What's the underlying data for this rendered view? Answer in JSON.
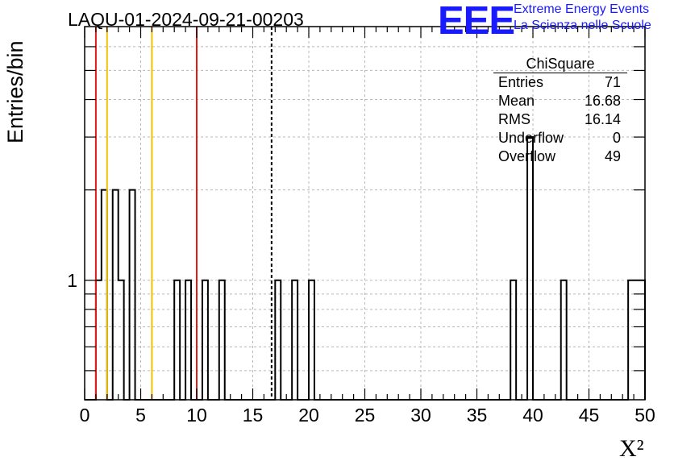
{
  "header": {
    "run_title": "LAQU-01-2024-09-21-00203",
    "y_axis_label": "Entries/bin",
    "x_axis_label": "X²"
  },
  "logo": {
    "mark": "EEE",
    "line1": "Extreme Energy Events",
    "line2": "La Scienza nelle Scuole",
    "color": "#1a1aff"
  },
  "stats_box": {
    "title": "ChiSquare",
    "rows": [
      {
        "label": "Entries",
        "value": "71"
      },
      {
        "label": "Mean",
        "value": "16.68"
      },
      {
        "label": "RMS",
        "value": "16.14"
      },
      {
        "label": "Underflow",
        "value": "0"
      },
      {
        "label": "Overflow",
        "value": "49"
      }
    ]
  },
  "chart_data": {
    "type": "histogram",
    "title": "LAQU-01-2024-09-21-00203",
    "xlabel": "X²",
    "ylabel": "Entries/bin",
    "xlim": [
      0,
      50
    ],
    "y_scale": "log",
    "ylim": [
      0.4,
      7
    ],
    "bin_width": 0.5,
    "xticks": [
      0,
      5,
      10,
      15,
      20,
      25,
      30,
      35,
      40,
      45,
      50
    ],
    "xtick_labels": [
      "0",
      "5",
      "10",
      "15",
      "20",
      "25",
      "30",
      "35",
      "40",
      "45",
      "50"
    ],
    "ytick_labels": [
      {
        "value": 1,
        "label": "1"
      }
    ],
    "grid": true,
    "bins": [
      {
        "x": 1.0,
        "count": 1
      },
      {
        "x": 1.5,
        "count": 2
      },
      {
        "x": 2.5,
        "count": 2
      },
      {
        "x": 3.0,
        "count": 1
      },
      {
        "x": 4.0,
        "count": 2
      },
      {
        "x": 8.0,
        "count": 1
      },
      {
        "x": 9.0,
        "count": 1
      },
      {
        "x": 10.5,
        "count": 1
      },
      {
        "x": 12.0,
        "count": 1
      },
      {
        "x": 17.0,
        "count": 1
      },
      {
        "x": 18.5,
        "count": 1
      },
      {
        "x": 20.0,
        "count": 1
      },
      {
        "x": 38.0,
        "count": 1
      },
      {
        "x": 39.5,
        "count": 3
      },
      {
        "x": 42.5,
        "count": 1
      },
      {
        "x": 48.5,
        "count": 1
      },
      {
        "x": 49.0,
        "count": 1
      },
      {
        "x": 49.5,
        "count": 1
      }
    ],
    "reference_lines": [
      {
        "x": 1.0,
        "color": "#e21a1a",
        "style": "solid",
        "role": "red-limit"
      },
      {
        "x": 2.0,
        "color": "#f5c000",
        "style": "solid",
        "role": "yellow-limit"
      },
      {
        "x": 6.0,
        "color": "#f5c000",
        "style": "solid",
        "role": "yellow-limit"
      },
      {
        "x": 10.0,
        "color": "#e21a1a",
        "style": "solid",
        "role": "red-limit"
      },
      {
        "x": 16.68,
        "color": "#000000",
        "style": "dashed",
        "role": "mean-line"
      }
    ]
  }
}
